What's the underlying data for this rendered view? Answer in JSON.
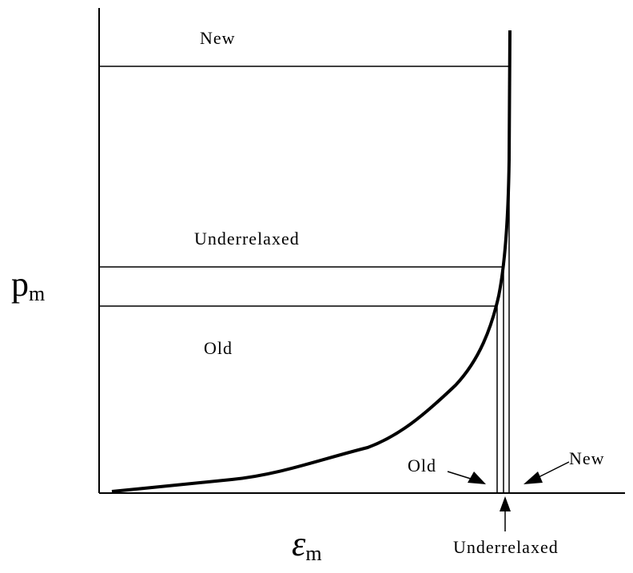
{
  "axes": {
    "y_label": {
      "symbol": "p",
      "subscript": "m"
    },
    "x_label": {
      "symbol": "ε",
      "subscript": "m"
    }
  },
  "levels": [
    {
      "label": "New"
    },
    {
      "label": "Underrelaxed"
    },
    {
      "label": "Old"
    }
  ],
  "markers": [
    {
      "label": "Old"
    },
    {
      "label": "New"
    },
    {
      "label": "Underrelaxed"
    }
  ]
}
